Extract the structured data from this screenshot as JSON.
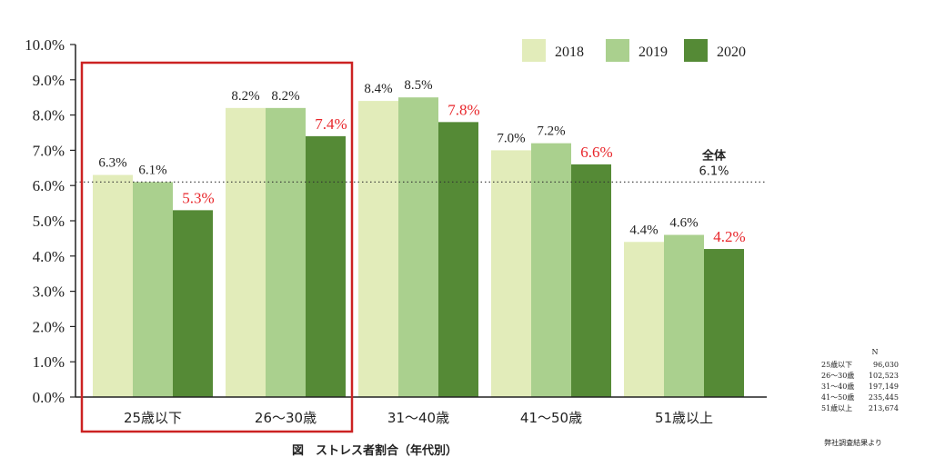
{
  "chart_data": {
    "type": "bar",
    "categories": [
      "25歳以下",
      "26～30歳",
      "31～40歳",
      "41～50歳",
      "51歳以上"
    ],
    "series": [
      {
        "name": "2018",
        "values": [
          6.3,
          8.2,
          8.4,
          7.0,
          4.4
        ],
        "labels": [
          "6.3%",
          "8.2%",
          "8.4%",
          "7.0%",
          "4.4%"
        ],
        "color": "#e2ecba"
      },
      {
        "name": "2019",
        "values": [
          6.1,
          8.2,
          8.5,
          7.2,
          4.6
        ],
        "labels": [
          "6.1%",
          "8.2%",
          "8.5%",
          "7.2%",
          "4.6%"
        ],
        "color": "#aad08e"
      },
      {
        "name": "2020",
        "values": [
          5.3,
          7.4,
          7.8,
          6.6,
          4.2
        ],
        "labels": [
          "5.3%",
          "7.4%",
          "7.8%",
          "6.6%",
          "4.2%"
        ],
        "color": "#558a36"
      }
    ],
    "highlight_series": "2020",
    "highlight_color": "#e8262b",
    "ylim": [
      0,
      10
    ],
    "yticks": [
      "0.0%",
      "1.0%",
      "2.0%",
      "3.0%",
      "4.0%",
      "5.0%",
      "6.0%",
      "7.0%",
      "8.0%",
      "9.0%",
      "10.0%"
    ],
    "reference_line": {
      "value": 6.1,
      "label": "全体",
      "value_label": "6.1%",
      "style": "dotted"
    },
    "highlight_box": {
      "categories": [
        "25歳以下",
        "26～30歳"
      ],
      "color": "#cc2222"
    },
    "legend_position": "top-right",
    "caption": "図　ストレス者割合（年代別）",
    "xlabel": "",
    "ylabel": ""
  },
  "n_table": {
    "header": "N",
    "rows": [
      {
        "label": "25歳以下",
        "value": "96,030"
      },
      {
        "label": "26～30歳",
        "value": "102,523"
      },
      {
        "label": "31～40歳",
        "value": "197,149"
      },
      {
        "label": "41～50歳",
        "value": "235,445"
      },
      {
        "label": "51歳以上",
        "value": "213,674"
      }
    ]
  },
  "source_note": "弊社調査結果より"
}
